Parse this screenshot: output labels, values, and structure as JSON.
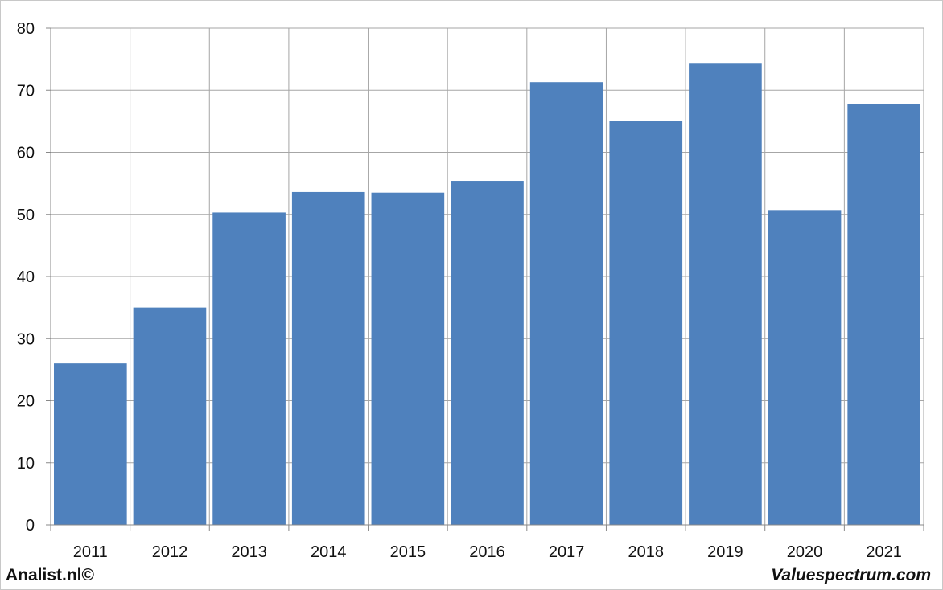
{
  "chart_data": {
    "type": "bar",
    "categories": [
      "2011",
      "2012",
      "2013",
      "2014",
      "2015",
      "2016",
      "2017",
      "2018",
      "2019",
      "2020",
      "2021"
    ],
    "values": [
      26.0,
      35.0,
      50.3,
      53.6,
      53.5,
      55.4,
      71.3,
      65.0,
      74.4,
      50.7,
      67.8
    ],
    "title": "",
    "xlabel": "",
    "ylabel": "",
    "ylim": [
      0,
      80
    ],
    "yticks": [
      0,
      10,
      20,
      30,
      40,
      50,
      60,
      70,
      80
    ],
    "grid": true,
    "bar_color": "#4f81bd",
    "grid_color": "#a6a6a6"
  },
  "footer": {
    "left": "Analist.nl©",
    "right": "Valuespectrum.com"
  }
}
